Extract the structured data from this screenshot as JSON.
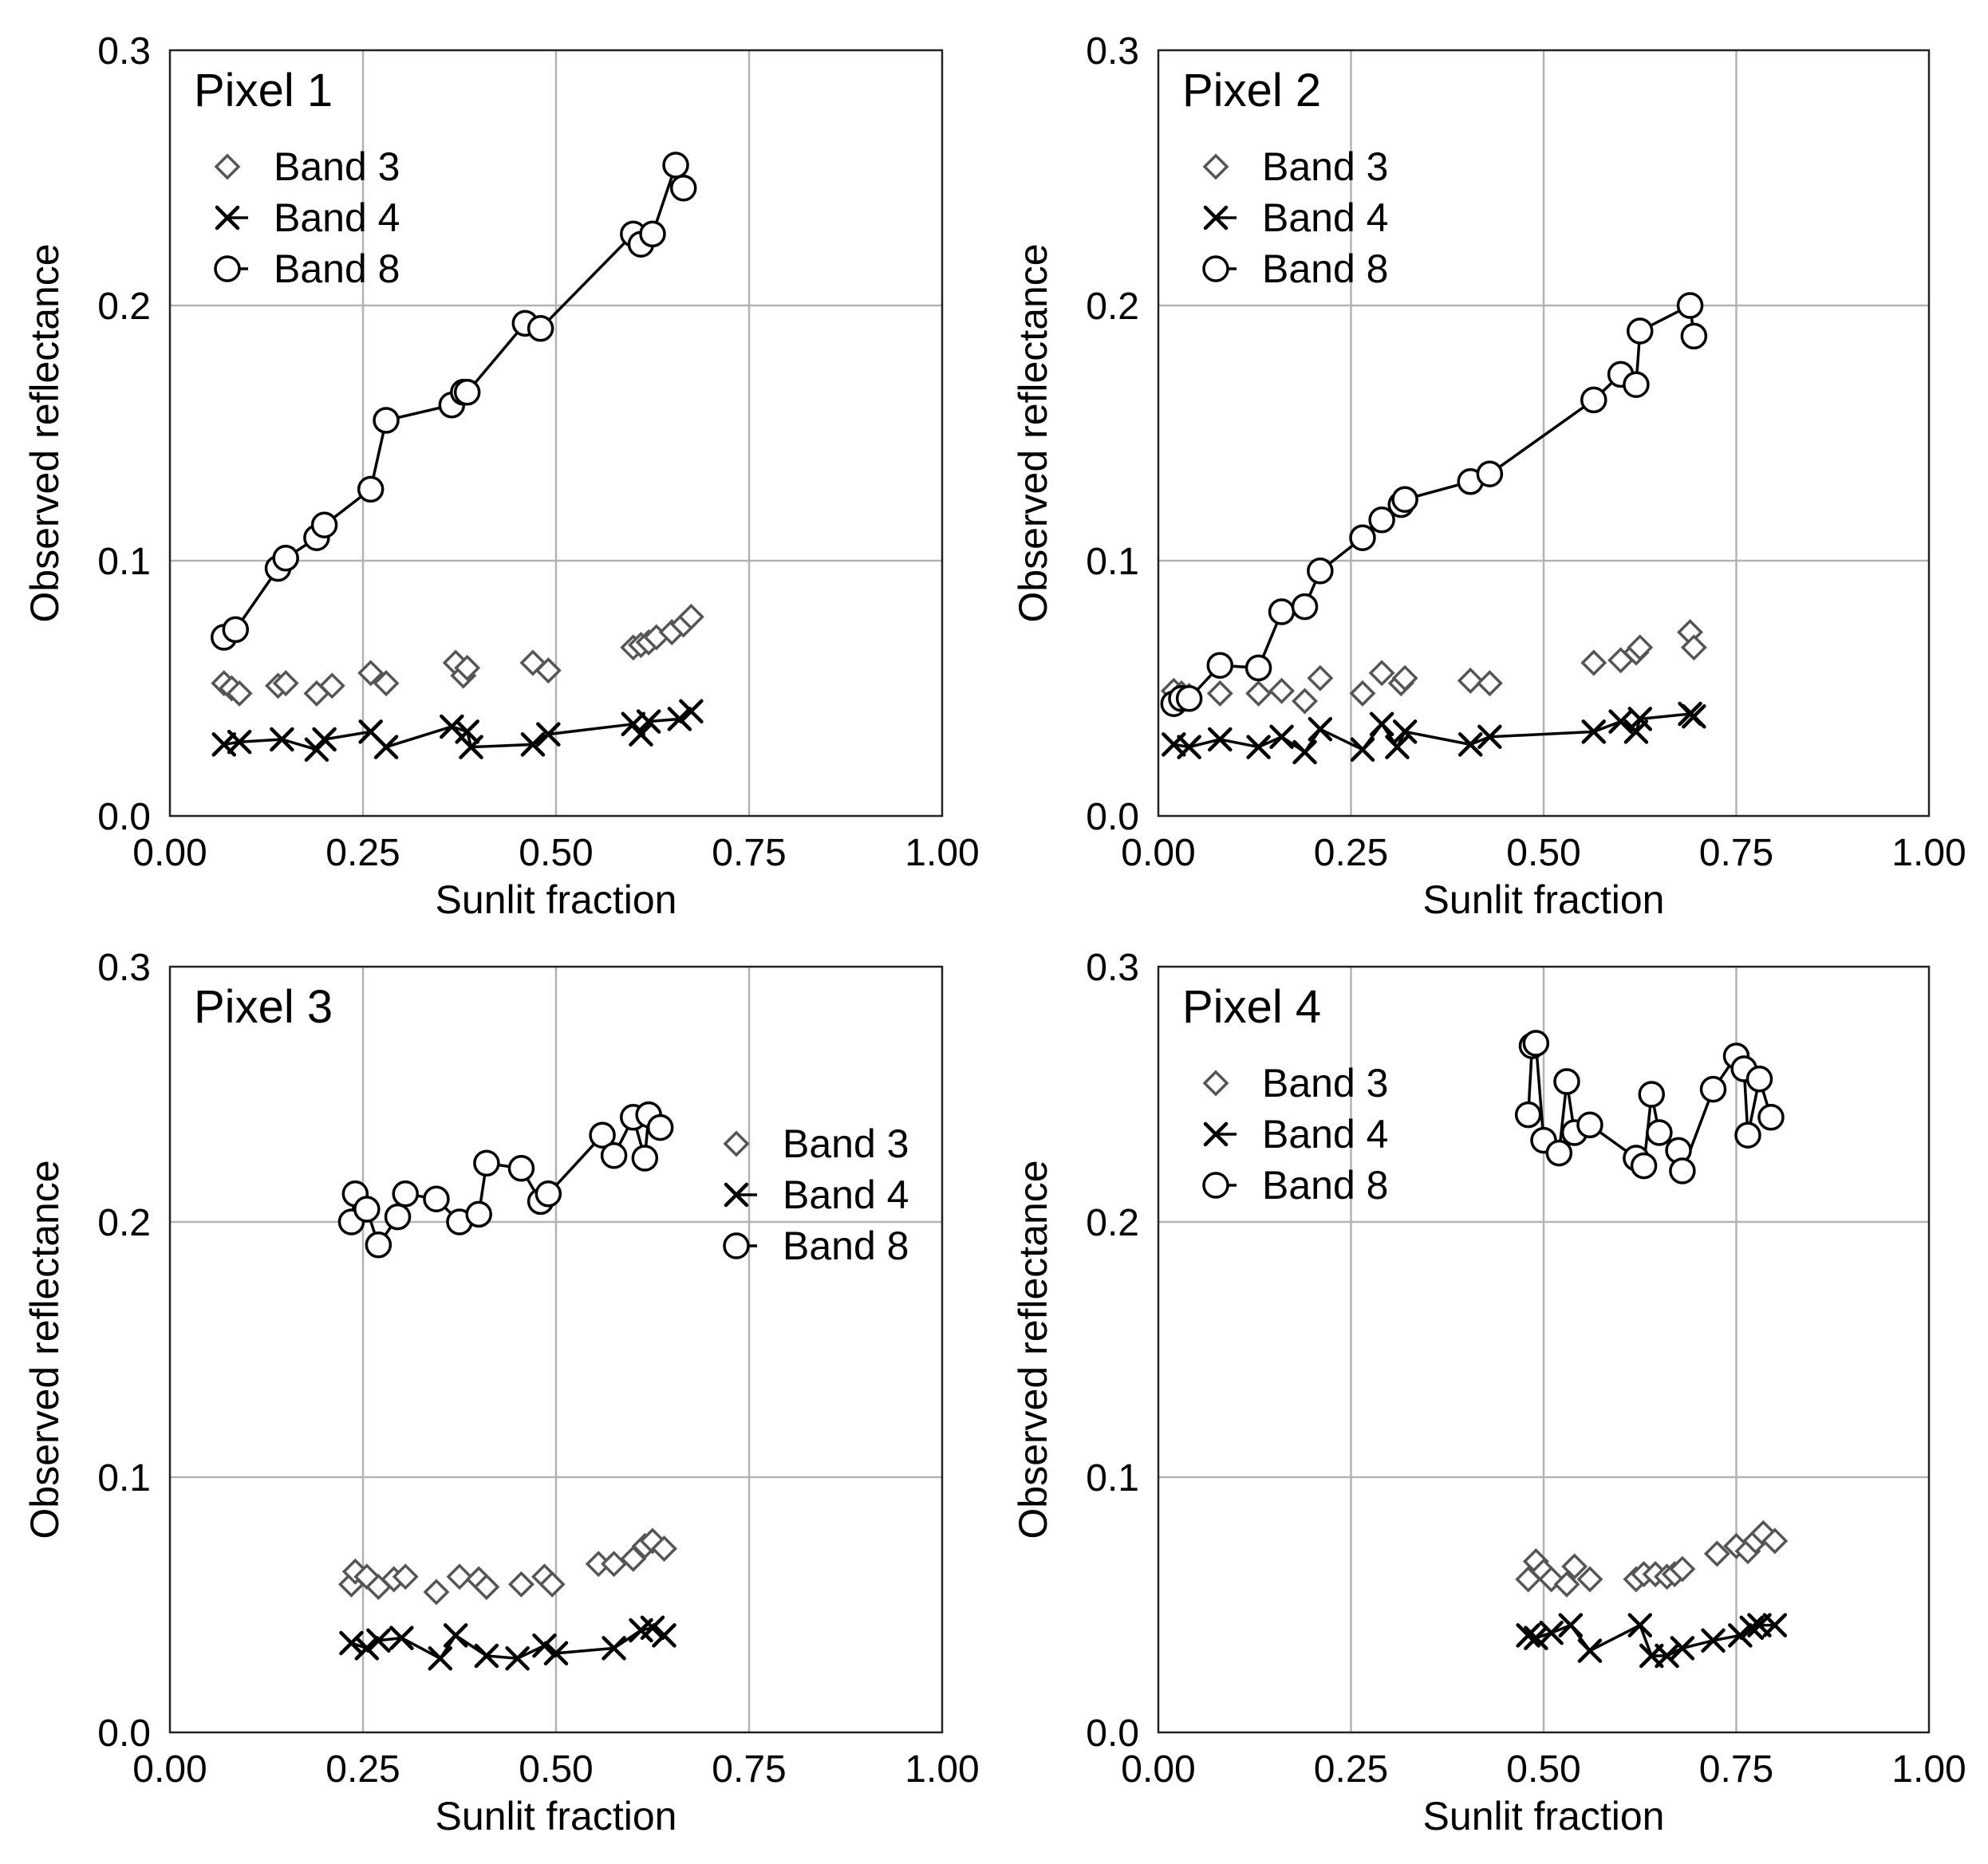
{
  "figure": {
    "xlabel": "Sunlit fraction",
    "ylabel": "Observed reflectance",
    "xticks": [
      "0.00",
      "0.25",
      "0.50",
      "0.75",
      "1.00"
    ],
    "yticks": [
      "0.0",
      "0.1",
      "0.2",
      "0.3"
    ]
  },
  "chart_data": [
    {
      "type": "scatter",
      "title": "Pixel 1",
      "xlabel": "Sunlit fraction",
      "ylabel": "Observed reflectance",
      "xlim": [
        0,
        1
      ],
      "ylim": [
        0,
        0.3
      ],
      "grid": true,
      "legend": {
        "placement": "top-left",
        "entries": [
          "Band 3",
          "Band 4",
          "Band 8"
        ]
      },
      "series": [
        {
          "name": "Band 3",
          "marker": "diamond",
          "connected": false,
          "x": [
            0.07,
            0.08,
            0.09,
            0.14,
            0.15,
            0.19,
            0.21,
            0.26,
            0.28,
            0.37,
            0.38,
            0.385,
            0.47,
            0.49,
            0.6,
            0.61,
            0.62,
            0.63,
            0.65,
            0.665,
            0.675
          ],
          "y": [
            0.052,
            0.05,
            0.048,
            0.051,
            0.052,
            0.048,
            0.051,
            0.056,
            0.052,
            0.06,
            0.055,
            0.058,
            0.06,
            0.057,
            0.066,
            0.067,
            0.068,
            0.07,
            0.072,
            0.075,
            0.078
          ]
        },
        {
          "name": "Band 4",
          "marker": "x",
          "connected": true,
          "x": [
            0.07,
            0.09,
            0.145,
            0.19,
            0.2,
            0.26,
            0.28,
            0.365,
            0.385,
            0.39,
            0.47,
            0.49,
            0.6,
            0.61,
            0.62,
            0.66,
            0.675
          ],
          "y": [
            0.028,
            0.029,
            0.03,
            0.026,
            0.03,
            0.033,
            0.027,
            0.035,
            0.033,
            0.027,
            0.028,
            0.032,
            0.036,
            0.032,
            0.037,
            0.038,
            0.041
          ]
        },
        {
          "name": "Band 8",
          "marker": "circle",
          "connected": true,
          "x": [
            0.07,
            0.085,
            0.14,
            0.15,
            0.19,
            0.2,
            0.26,
            0.28,
            0.365,
            0.38,
            0.385,
            0.46,
            0.48,
            0.6,
            0.61,
            0.625,
            0.655,
            0.665
          ],
          "y": [
            0.07,
            0.073,
            0.097,
            0.101,
            0.109,
            0.114,
            0.128,
            0.155,
            0.161,
            0.166,
            0.166,
            0.193,
            0.191,
            0.228,
            0.224,
            0.228,
            0.255,
            0.246
          ]
        }
      ]
    },
    {
      "type": "scatter",
      "title": "Pixel 2",
      "xlabel": "Sunlit fraction",
      "ylabel": "Observed reflectance",
      "xlim": [
        0,
        1
      ],
      "ylim": [
        0,
        0.3
      ],
      "grid": true,
      "legend": {
        "placement": "top-left",
        "entries": [
          "Band 3",
          "Band 4",
          "Band 8"
        ]
      },
      "series": [
        {
          "name": "Band 3",
          "marker": "diamond",
          "connected": false,
          "x": [
            0.02,
            0.03,
            0.04,
            0.08,
            0.13,
            0.16,
            0.19,
            0.21,
            0.265,
            0.29,
            0.315,
            0.32,
            0.405,
            0.43,
            0.565,
            0.6,
            0.62,
            0.625,
            0.69,
            0.695
          ],
          "y": [
            0.049,
            0.048,
            0.047,
            0.048,
            0.048,
            0.049,
            0.045,
            0.054,
            0.048,
            0.056,
            0.052,
            0.054,
            0.053,
            0.052,
            0.06,
            0.061,
            0.064,
            0.066,
            0.072,
            0.066
          ]
        },
        {
          "name": "Band 4",
          "marker": "x",
          "connected": true,
          "x": [
            0.02,
            0.04,
            0.08,
            0.13,
            0.16,
            0.19,
            0.21,
            0.265,
            0.29,
            0.31,
            0.32,
            0.405,
            0.43,
            0.565,
            0.6,
            0.62,
            0.625,
            0.69,
            0.695
          ],
          "y": [
            0.028,
            0.027,
            0.03,
            0.027,
            0.031,
            0.025,
            0.034,
            0.026,
            0.036,
            0.027,
            0.033,
            0.028,
            0.031,
            0.033,
            0.037,
            0.033,
            0.038,
            0.04,
            0.039
          ]
        },
        {
          "name": "Band 8",
          "marker": "circle",
          "connected": true,
          "x": [
            0.02,
            0.03,
            0.04,
            0.08,
            0.13,
            0.16,
            0.19,
            0.21,
            0.265,
            0.29,
            0.315,
            0.32,
            0.405,
            0.43,
            0.565,
            0.6,
            0.62,
            0.625,
            0.69,
            0.695
          ],
          "y": [
            0.044,
            0.046,
            0.046,
            0.059,
            0.058,
            0.08,
            0.082,
            0.096,
            0.109,
            0.116,
            0.122,
            0.124,
            0.131,
            0.134,
            0.163,
            0.173,
            0.169,
            0.19,
            0.2,
            0.188
          ]
        }
      ]
    },
    {
      "type": "scatter",
      "title": "Pixel 3",
      "xlabel": "Sunlit fraction",
      "ylabel": "Observed reflectance",
      "xlim": [
        0,
        1
      ],
      "ylim": [
        0,
        0.3
      ],
      "grid": true,
      "legend": {
        "placement": "right",
        "entries": [
          "Band 3",
          "Band 4",
          "Band 8"
        ]
      },
      "series": [
        {
          "name": "Band 3",
          "marker": "diamond",
          "connected": false,
          "x": [
            0.235,
            0.24,
            0.255,
            0.27,
            0.29,
            0.305,
            0.345,
            0.375,
            0.4,
            0.41,
            0.455,
            0.485,
            0.495,
            0.555,
            0.575,
            0.6,
            0.615,
            0.625,
            0.64
          ],
          "y": [
            0.058,
            0.063,
            0.061,
            0.057,
            0.06,
            0.061,
            0.055,
            0.061,
            0.06,
            0.057,
            0.058,
            0.061,
            0.058,
            0.066,
            0.066,
            0.068,
            0.073,
            0.075,
            0.072
          ]
        },
        {
          "name": "Band 4",
          "marker": "x",
          "connected": true,
          "x": [
            0.235,
            0.255,
            0.27,
            0.3,
            0.35,
            0.37,
            0.41,
            0.45,
            0.485,
            0.5,
            0.575,
            0.61,
            0.625,
            0.64
          ],
          "y": [
            0.035,
            0.033,
            0.036,
            0.037,
            0.029,
            0.038,
            0.03,
            0.029,
            0.034,
            0.031,
            0.033,
            0.04,
            0.041,
            0.038
          ]
        },
        {
          "name": "Band 8",
          "marker": "circle",
          "connected": true,
          "x": [
            0.235,
            0.24,
            0.255,
            0.27,
            0.295,
            0.305,
            0.345,
            0.375,
            0.4,
            0.41,
            0.455,
            0.48,
            0.49,
            0.56,
            0.575,
            0.6,
            0.615,
            0.62,
            0.635
          ],
          "y": [
            0.2,
            0.211,
            0.205,
            0.191,
            0.202,
            0.211,
            0.209,
            0.2,
            0.203,
            0.223,
            0.221,
            0.208,
            0.211,
            0.234,
            0.226,
            0.241,
            0.225,
            0.242,
            0.237
          ]
        }
      ]
    },
    {
      "type": "scatter",
      "title": "Pixel 4",
      "xlabel": "Sunlit fraction",
      "ylabel": "Observed reflectance",
      "xlim": [
        0,
        1
      ],
      "ylim": [
        0,
        0.3
      ],
      "grid": true,
      "legend": {
        "placement": "top-left",
        "entries": [
          "Band 3",
          "Band 4",
          "Band 8"
        ]
      },
      "series": [
        {
          "name": "Band 3",
          "marker": "diamond",
          "connected": false,
          "x": [
            0.48,
            0.49,
            0.5,
            0.51,
            0.53,
            0.54,
            0.56,
            0.62,
            0.63,
            0.645,
            0.66,
            0.67,
            0.68,
            0.725,
            0.75,
            0.765,
            0.775,
            0.785,
            0.8
          ],
          "y": [
            0.06,
            0.067,
            0.063,
            0.06,
            0.058,
            0.065,
            0.06,
            0.06,
            0.062,
            0.062,
            0.061,
            0.062,
            0.064,
            0.07,
            0.073,
            0.071,
            0.075,
            0.078,
            0.075
          ]
        },
        {
          "name": "Band 4",
          "marker": "x",
          "connected": true,
          "x": [
            0.48,
            0.49,
            0.51,
            0.535,
            0.56,
            0.625,
            0.64,
            0.66,
            0.68,
            0.72,
            0.755,
            0.77,
            0.78,
            0.8
          ],
          "y": [
            0.038,
            0.037,
            0.039,
            0.042,
            0.032,
            0.042,
            0.03,
            0.03,
            0.033,
            0.036,
            0.038,
            0.041,
            0.042,
            0.042
          ]
        },
        {
          "name": "Band 8",
          "marker": "circle",
          "connected": true,
          "x": [
            0.48,
            0.485,
            0.49,
            0.5,
            0.52,
            0.53,
            0.54,
            0.56,
            0.62,
            0.63,
            0.64,
            0.65,
            0.675,
            0.68,
            0.72,
            0.75,
            0.76,
            0.765,
            0.78,
            0.795
          ],
          "y": [
            0.242,
            0.269,
            0.27,
            0.232,
            0.227,
            0.255,
            0.235,
            0.238,
            0.225,
            0.222,
            0.25,
            0.235,
            0.228,
            0.22,
            0.252,
            0.265,
            0.26,
            0.234,
            0.256,
            0.241
          ]
        }
      ]
    }
  ]
}
